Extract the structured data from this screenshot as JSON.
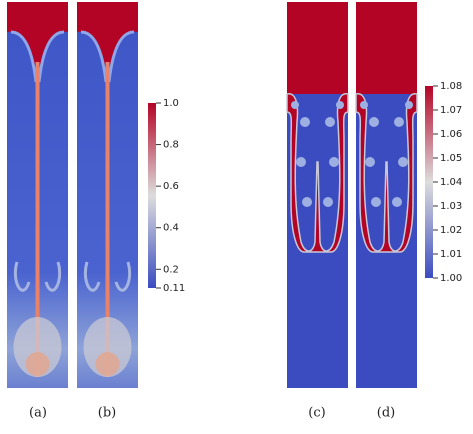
{
  "panels": [
    {
      "label": "(a)"
    },
    {
      "label": "(b)"
    },
    {
      "label": "(c)"
    },
    {
      "label": "(d)"
    }
  ],
  "colorbars": [
    {
      "ticks": [
        "1.0",
        "0.8",
        "0.6",
        "0.4",
        "0.2",
        "0.11"
      ]
    },
    {
      "ticks": [
        "1.08",
        "1.07",
        "1.06",
        "1.05",
        "1.04",
        "1.03",
        "1.02",
        "1.01",
        "1.00"
      ]
    }
  ]
}
